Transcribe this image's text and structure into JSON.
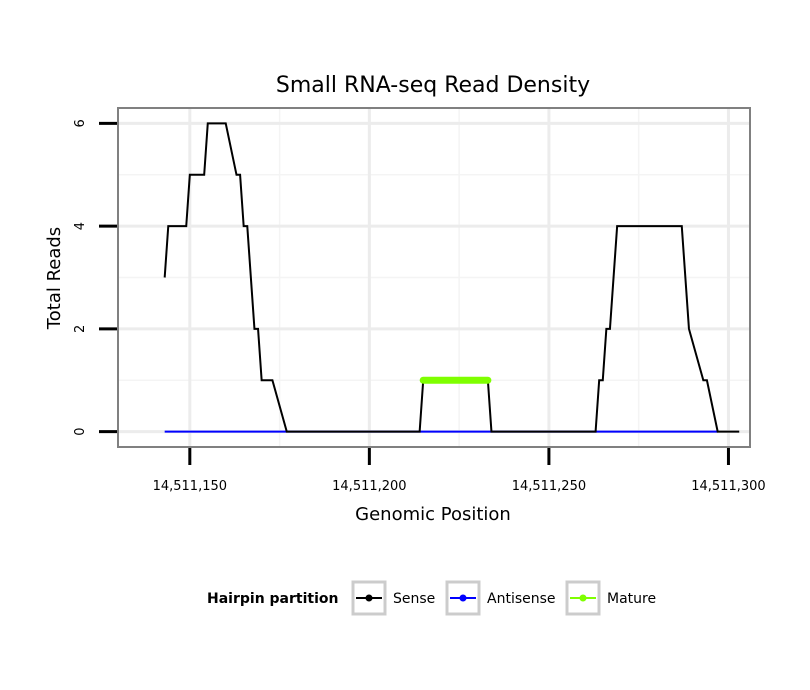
{
  "chart_data": {
    "type": "line",
    "title": "Small RNA-seq Read Density",
    "xlabel": "Genomic Position",
    "ylabel": "Total Reads",
    "xlim": [
      14511130,
      14511306
    ],
    "ylim": [
      -0.3,
      6.3
    ],
    "xticks": [
      {
        "value": 14511150,
        "label": "14,511,150"
      },
      {
        "value": 14511200,
        "label": "14,511,200"
      },
      {
        "value": 14511250,
        "label": "14,511,250"
      },
      {
        "value": 14511300,
        "label": "14,511,300"
      }
    ],
    "yticks": [
      {
        "value": 0,
        "label": "0"
      },
      {
        "value": 2,
        "label": "2"
      },
      {
        "value": 4,
        "label": "4"
      },
      {
        "value": 6,
        "label": "6"
      }
    ],
    "grid": true,
    "legend": {
      "title": "Hairpin partition",
      "position": "bottom"
    },
    "series": [
      {
        "name": "Sense",
        "color": "#000000",
        "x": [
          14511143,
          14511144,
          14511149,
          14511150,
          14511154,
          14511155,
          14511159,
          14511160,
          14511163,
          14511164,
          14511165,
          14511166,
          14511167,
          14511168,
          14511169,
          14511170,
          14511173,
          14511177,
          14511214,
          14511215,
          14511233,
          14511234,
          14511263,
          14511264,
          14511265,
          14511266,
          14511267,
          14511269,
          14511287,
          14511289,
          14511293,
          14511294,
          14511297,
          14511303
        ],
        "y": [
          3,
          4,
          4,
          5,
          5,
          6,
          6,
          6,
          5,
          5,
          4,
          4,
          3,
          2,
          2,
          1,
          1,
          0,
          0,
          1,
          1,
          0,
          0,
          1,
          1,
          2,
          2,
          4,
          4,
          2,
          1,
          1,
          0,
          0
        ]
      },
      {
        "name": "Antisense",
        "color": "#0000ff",
        "x": [
          14511143,
          14511297
        ],
        "y": [
          0,
          0
        ]
      },
      {
        "name": "Mature",
        "color": "#7fff00",
        "x": [
          14511215,
          14511233
        ],
        "y": [
          1,
          1
        ]
      }
    ]
  }
}
